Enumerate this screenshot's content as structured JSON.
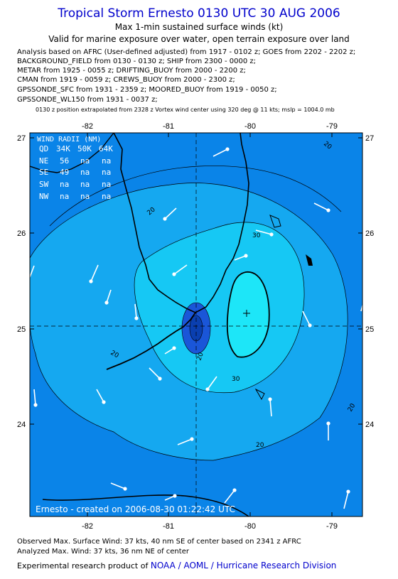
{
  "header": {
    "title": "Tropical Storm Ernesto 0130 UTC 30 AUG 2006",
    "subtitle": "Max 1-min sustained surface winds (kt)",
    "valid_line": "Valid for marine exposure over water, open terrain exposure over land",
    "analysis_lines": [
      "Analysis based on  AFRC (User-defined adjusted) from 1917 - 0102 z;  GOES from 2202 - 2202 z;",
      "BACKGROUND_FIELD from 0130 - 0130 z;  SHIP from 2300 - 0000 z;",
      "METAR from 1925 - 0055 z;  DRIFTING_BUOY from 2000 - 2200 z;",
      "CMAN from 1919 - 0059 z;  CREWS_BUOY from 2000 - 2300 z;",
      "GPSSONDE_SFC from 1931 - 2359 z;  MOORED_BUOY from 1919 - 0050 z;",
      "GPSSONDE_WL150 from 1931 - 0037 z;"
    ],
    "position_note": "0130 z position extrapolated from 2328 z Vortex wind center using 320 deg @ 11 kts;  mslp = 1004.0 mb"
  },
  "map": {
    "lon_range": [
      -82.7,
      -78.6
    ],
    "lat_range": [
      23.1,
      27.05
    ],
    "top_lon_ticks": [
      "-82",
      "-81",
      "-80",
      "-79"
    ],
    "bottom_lon_ticks": [
      "-82",
      "-81",
      "-80",
      "-79"
    ],
    "lat_ticks": [
      "27",
      "26",
      "25",
      "24"
    ],
    "contour_levels": [
      "20",
      "30"
    ],
    "colors": {
      "lt20": "#0a84e8",
      "20to30": "#15a8f0",
      "30to34": "#16c8f4",
      "gt34": "#1de6f8",
      "center_low": "#1a56d8",
      "vector": "#ffffff",
      "coast": "#000000"
    },
    "center": {
      "lon": -80.0,
      "lat": 25.15
    },
    "wind_radii": {
      "title": "WIND RADII (NM)",
      "header": [
        "QD",
        "34K",
        "50K",
        "64K"
      ],
      "rows": [
        [
          "NE",
          "56",
          "na",
          "na"
        ],
        [
          "SE",
          "49",
          "na",
          "na"
        ],
        [
          "SW",
          "na",
          "na",
          "na"
        ],
        [
          "NW",
          "na",
          "na",
          "na"
        ]
      ]
    },
    "credit": "Ernesto - created on 2006-08-30 01:22:42 UTC"
  },
  "footer": {
    "observed": "Observed Max. Surface Wind: 37 kts, 40 nm SE of center based on 2341 z AFRC",
    "analyzed": "Analyzed Max. Wind: 37 kts, 36 nm NE of center",
    "product_prefix": "Experimental research product of",
    "organization": "NOAA / AOML / Hurricane Research Division"
  }
}
